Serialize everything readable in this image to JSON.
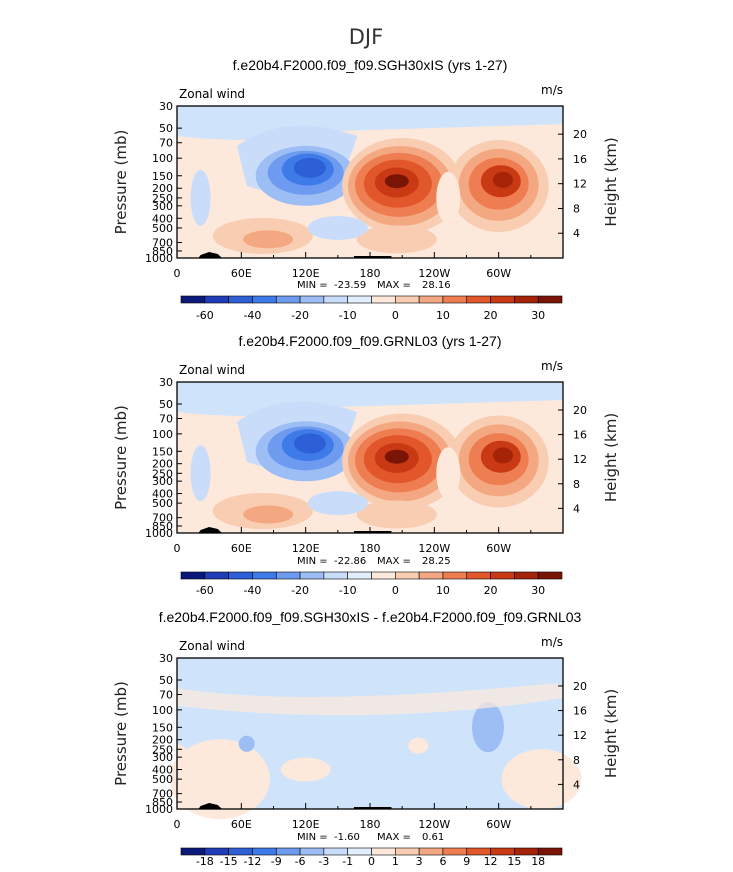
{
  "figure_title": "DJF",
  "colors": {
    "bg_field": "#cfe3fb",
    "frame": "#000000",
    "pal_main": [
      "#0b1a7a",
      "#1f3cb8",
      "#2d5fd6",
      "#3f7be8",
      "#6e9bf0",
      "#9dbef5",
      "#c9ddfa",
      "#e3eefd",
      "#fde9dc",
      "#f8cdb2",
      "#f4a882",
      "#ee7e52",
      "#e2562b",
      "#c83914",
      "#a52408",
      "#7a1405"
    ],
    "pal_diff": [
      "#0b1a7a",
      "#1f3cb8",
      "#2d5fd6",
      "#3f7be8",
      "#6e9bf0",
      "#9dbef5",
      "#c9ddfa",
      "#e3eefd",
      "#fde9dc",
      "#f8cdb2",
      "#f4a882",
      "#ee7e52",
      "#e2562b",
      "#c83914",
      "#a52408",
      "#7a1405"
    ]
  },
  "chart_data": [
    {
      "type": "contour",
      "title": "f.e20b4.F2000.f09_f09.SGH30xIS (yrs 1-27)",
      "left_label": "Zonal wind",
      "units": "m/s",
      "ylabel": "Pressure (mb)",
      "ylabel_right": "Height (km)",
      "x_ticks": [
        "0",
        "60E",
        "120E",
        "180",
        "120W",
        "60W"
      ],
      "y_ticks": [
        "30",
        "50",
        "70",
        "100",
        "150",
        "200",
        "250",
        "300",
        "400",
        "500",
        "700",
        "850",
        "1000"
      ],
      "y_right_ticks": [
        "20",
        "16",
        "12",
        "8",
        "4"
      ],
      "min_label": "MIN =",
      "min_value": "-23.59",
      "max_label": "MAX =",
      "max_value": "28.16",
      "colorbar_labels": [
        "-60",
        "-40",
        "-20",
        "-10",
        "0",
        "10",
        "20",
        "30"
      ],
      "colorbar_positions": [
        1,
        3,
        5,
        7,
        9,
        11,
        13,
        15
      ],
      "features": [
        {
          "name": "easterly-core",
          "lon": 120,
          "p": 120,
          "value": -23.59
        },
        {
          "name": "jet-core-pacific",
          "lon": 200,
          "p": 200,
          "value": 28.16
        },
        {
          "name": "jet-core-atlantic",
          "lon": 300,
          "p": 200,
          "value": 22
        },
        {
          "name": "low-level-westerly",
          "lon": 60,
          "p": 700,
          "value": 5
        }
      ]
    },
    {
      "type": "contour",
      "title": "f.e20b4.F2000.f09_f09.GRNL03 (yrs 1-27)",
      "left_label": "Zonal wind",
      "units": "m/s",
      "ylabel": "Pressure (mb)",
      "ylabel_right": "Height (km)",
      "x_ticks": [
        "0",
        "60E",
        "120E",
        "180",
        "120W",
        "60W"
      ],
      "y_ticks": [
        "30",
        "50",
        "70",
        "100",
        "150",
        "200",
        "250",
        "300",
        "400",
        "500",
        "700",
        "850",
        "1000"
      ],
      "y_right_ticks": [
        "20",
        "16",
        "12",
        "8",
        "4"
      ],
      "min_label": "MIN =",
      "min_value": "-22.86",
      "max_label": "MAX =",
      "max_value": "28.25",
      "colorbar_labels": [
        "-60",
        "-40",
        "-20",
        "-10",
        "0",
        "10",
        "20",
        "30"
      ],
      "colorbar_positions": [
        1,
        3,
        5,
        7,
        9,
        11,
        13,
        15
      ],
      "features": [
        {
          "name": "easterly-core",
          "lon": 120,
          "p": 120,
          "value": -22.86
        },
        {
          "name": "jet-core-pacific",
          "lon": 200,
          "p": 200,
          "value": 28.25
        },
        {
          "name": "jet-core-atlantic",
          "lon": 300,
          "p": 200,
          "value": 22
        },
        {
          "name": "low-level-westerly",
          "lon": 60,
          "p": 700,
          "value": 5
        }
      ]
    },
    {
      "type": "contour",
      "title": "f.e20b4.F2000.f09_f09.SGH30xIS - f.e20b4.F2000.f09_f09.GRNL03",
      "left_label": "Zonal wind",
      "units": "m/s",
      "ylabel": "Pressure (mb)",
      "ylabel_right": "Height (km)",
      "x_ticks": [
        "0",
        "60E",
        "120E",
        "180",
        "120W",
        "60W"
      ],
      "y_ticks": [
        "30",
        "50",
        "70",
        "100",
        "150",
        "200",
        "250",
        "300",
        "400",
        "500",
        "700",
        "850",
        "1000"
      ],
      "y_right_ticks": [
        "20",
        "16",
        "12",
        "8",
        "4"
      ],
      "min_label": "MIN =",
      "min_value": "-1.60",
      "max_label": "MAX =",
      "max_value": "0.61",
      "colorbar_labels": [
        "-18",
        "-15",
        "-12",
        "-9",
        "-6",
        "-3",
        "-1",
        "0",
        "1",
        "3",
        "6",
        "9",
        "12",
        "15",
        "18"
      ],
      "colorbar_positions": [
        1,
        2,
        3,
        4,
        5,
        6,
        7,
        8,
        9,
        10,
        11,
        12,
        13,
        14,
        15
      ],
      "features": [
        {
          "name": "negative-blob-pacific",
          "lon": 250,
          "p": 150,
          "value": -1.6
        },
        {
          "name": "negative-blob-west",
          "lon": 90,
          "p": 200,
          "value": -1
        },
        {
          "name": "positive-region-lower",
          "lon": 30,
          "p": 400,
          "value": 0.61
        }
      ]
    }
  ]
}
